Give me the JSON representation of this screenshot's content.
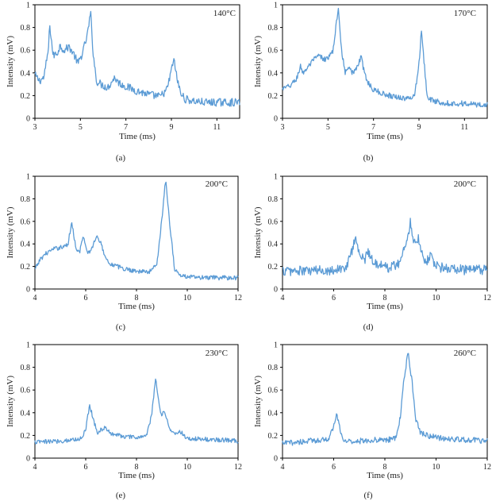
{
  "chart_data": [
    {
      "type": "line",
      "panel_label": "(a)",
      "annotation": "140°C",
      "xlabel": "Time (ms)",
      "ylabel": "Intensity (mV)",
      "xlim": [
        3,
        12
      ],
      "ylim": [
        0,
        1
      ],
      "xticks": [
        "3",
        "5",
        "7",
        "9",
        "11"
      ],
      "xtick_values": [
        3,
        5,
        7,
        9,
        11
      ],
      "yticks": [
        "0",
        "0.2",
        "0.4",
        "0.6",
        "0.8",
        "1"
      ],
      "ytick_values": [
        0,
        0.2,
        0.4,
        0.6,
        0.8,
        1
      ],
      "color": "#5b9bd5",
      "x": [
        3.0,
        3.2,
        3.4,
        3.6,
        3.65,
        3.8,
        4.0,
        4.1,
        4.3,
        4.5,
        4.7,
        4.9,
        5.1,
        5.3,
        5.45,
        5.55,
        5.7,
        5.9,
        6.2,
        6.5,
        6.7,
        7.0,
        7.5,
        8.0,
        8.5,
        8.8,
        9.0,
        9.1,
        9.2,
        9.4,
        9.6,
        10.0,
        10.5,
        11.0,
        11.5,
        12.0
      ],
      "y": [
        0.38,
        0.33,
        0.36,
        0.62,
        0.83,
        0.55,
        0.58,
        0.64,
        0.6,
        0.63,
        0.57,
        0.48,
        0.58,
        0.73,
        0.93,
        0.6,
        0.33,
        0.3,
        0.27,
        0.36,
        0.31,
        0.28,
        0.24,
        0.21,
        0.19,
        0.25,
        0.42,
        0.53,
        0.4,
        0.22,
        0.17,
        0.15,
        0.14,
        0.14,
        0.14,
        0.14
      ],
      "noise": 0.035
    },
    {
      "type": "line",
      "panel_label": "(b)",
      "annotation": "170°C",
      "xlabel": "Time (ms)",
      "ylabel": "Intensity (mV)",
      "xlim": [
        3,
        12
      ],
      "ylim": [
        0,
        1
      ],
      "xticks": [
        "3",
        "5",
        "7",
        "9",
        "11"
      ],
      "xtick_values": [
        3,
        5,
        7,
        9,
        11
      ],
      "yticks": [
        "0",
        "0.2",
        "0.4",
        "0.6",
        "0.8",
        "1"
      ],
      "ytick_values": [
        0,
        0.2,
        0.4,
        0.6,
        0.8,
        1
      ],
      "color": "#5b9bd5",
      "x": [
        3.0,
        3.3,
        3.6,
        3.8,
        3.9,
        4.2,
        4.4,
        4.6,
        4.8,
        5.0,
        5.2,
        5.35,
        5.45,
        5.6,
        5.75,
        5.9,
        6.1,
        6.3,
        6.45,
        6.6,
        6.8,
        7.0,
        7.5,
        8.0,
        8.5,
        8.8,
        9.0,
        9.1,
        9.2,
        9.35,
        9.5,
        10.0,
        10.5,
        11.0,
        11.5,
        12.0
      ],
      "y": [
        0.26,
        0.28,
        0.34,
        0.46,
        0.4,
        0.47,
        0.52,
        0.55,
        0.52,
        0.53,
        0.58,
        0.8,
        0.97,
        0.6,
        0.4,
        0.47,
        0.39,
        0.46,
        0.54,
        0.4,
        0.3,
        0.25,
        0.21,
        0.19,
        0.17,
        0.2,
        0.48,
        0.77,
        0.55,
        0.22,
        0.16,
        0.14,
        0.13,
        0.13,
        0.12,
        0.12
      ],
      "noise": 0.025
    },
    {
      "type": "line",
      "panel_label": "(c)",
      "annotation": "200°C",
      "xlabel": "Time (ms)",
      "ylabel": "Intensity (mV)",
      "xlim": [
        4,
        12
      ],
      "ylim": [
        0,
        1
      ],
      "xticks": [
        "4",
        "6",
        "8",
        "10",
        "12"
      ],
      "xtick_values": [
        4,
        6,
        8,
        10,
        12
      ],
      "yticks": [
        "0",
        "0.2",
        "0.4",
        "0.6",
        "0.8",
        "1"
      ],
      "ytick_values": [
        0,
        0.2,
        0.4,
        0.6,
        0.8,
        1
      ],
      "color": "#5b9bd5",
      "x": [
        4.0,
        4.2,
        4.4,
        4.7,
        5.0,
        5.3,
        5.45,
        5.6,
        5.75,
        5.9,
        6.05,
        6.2,
        6.45,
        6.6,
        6.8,
        7.0,
        7.5,
        8.0,
        8.5,
        8.8,
        9.0,
        9.15,
        9.3,
        9.5,
        9.7,
        10.0,
        10.5,
        11.0,
        11.5,
        12.0
      ],
      "y": [
        0.17,
        0.26,
        0.31,
        0.35,
        0.37,
        0.39,
        0.6,
        0.38,
        0.32,
        0.47,
        0.32,
        0.34,
        0.48,
        0.4,
        0.27,
        0.22,
        0.18,
        0.16,
        0.15,
        0.22,
        0.62,
        0.98,
        0.6,
        0.18,
        0.12,
        0.11,
        0.1,
        0.1,
        0.1,
        0.1
      ],
      "noise": 0.02
    },
    {
      "type": "line",
      "panel_label": "(d)",
      "annotation": "200°C",
      "xlabel": "Time (ms)",
      "ylabel": "Intensity (mV)",
      "xlim": [
        4,
        12
      ],
      "ylim": [
        0,
        1
      ],
      "xticks": [
        "4",
        "6",
        "8",
        "10",
        "12"
      ],
      "xtick_values": [
        4,
        6,
        8,
        10,
        12
      ],
      "yticks": [
        "0",
        "0.2",
        "0.4",
        "0.6",
        "0.8",
        "1"
      ],
      "ytick_values": [
        0,
        0.2,
        0.4,
        0.6,
        0.8,
        1
      ],
      "color": "#5b9bd5",
      "x": [
        4.0,
        5.0,
        6.0,
        6.5,
        6.7,
        6.85,
        7.0,
        7.2,
        7.35,
        7.5,
        7.8,
        8.2,
        8.6,
        8.85,
        9.0,
        9.15,
        9.3,
        9.45,
        9.6,
        9.8,
        10.0,
        10.5,
        11.0,
        11.5,
        12.0
      ],
      "y": [
        0.16,
        0.16,
        0.17,
        0.19,
        0.33,
        0.47,
        0.3,
        0.26,
        0.33,
        0.26,
        0.21,
        0.19,
        0.24,
        0.42,
        0.6,
        0.4,
        0.46,
        0.32,
        0.24,
        0.3,
        0.2,
        0.18,
        0.17,
        0.17,
        0.17
      ],
      "noise": 0.045
    },
    {
      "type": "line",
      "panel_label": "(e)",
      "annotation": "230°C",
      "xlabel": "Time (ms)",
      "ylabel": "Intensity (mV)",
      "xlim": [
        4,
        12
      ],
      "ylim": [
        0,
        1
      ],
      "xticks": [
        "4",
        "6",
        "8",
        "10",
        "12"
      ],
      "xtick_values": [
        4,
        6,
        8,
        10,
        12
      ],
      "yticks": [
        "0",
        "0.2",
        "0.4",
        "0.6",
        "0.8",
        "1"
      ],
      "ytick_values": [
        0,
        0.2,
        0.4,
        0.6,
        0.8,
        1
      ],
      "color": "#5b9bd5",
      "x": [
        4.0,
        5.0,
        5.8,
        6.0,
        6.15,
        6.3,
        6.45,
        6.7,
        7.0,
        7.5,
        8.0,
        8.4,
        8.6,
        8.75,
        8.85,
        8.95,
        9.1,
        9.3,
        9.5,
        9.7,
        10.0,
        10.5,
        11.0,
        11.5,
        12.0
      ],
      "y": [
        0.14,
        0.15,
        0.17,
        0.25,
        0.47,
        0.35,
        0.22,
        0.27,
        0.22,
        0.19,
        0.18,
        0.2,
        0.38,
        0.7,
        0.55,
        0.38,
        0.42,
        0.26,
        0.21,
        0.24,
        0.17,
        0.17,
        0.16,
        0.16,
        0.15
      ],
      "noise": 0.02
    },
    {
      "type": "line",
      "panel_label": "(f)",
      "annotation": "260°C",
      "xlabel": "Time (ms)",
      "ylabel": "Intensity (mV)",
      "xlim": [
        4,
        12
      ],
      "ylim": [
        0,
        1
      ],
      "xticks": [
        "4",
        "6",
        "8",
        "10",
        "12"
      ],
      "xtick_values": [
        4,
        6,
        8,
        10,
        12
      ],
      "yticks": [
        "0",
        "0.2",
        "0.4",
        "0.6",
        "0.8",
        "1"
      ],
      "ytick_values": [
        0,
        0.2,
        0.4,
        0.6,
        0.8,
        1
      ],
      "color": "#5b9bd5",
      "x": [
        4.0,
        5.0,
        5.8,
        6.0,
        6.1,
        6.25,
        6.4,
        7.0,
        7.5,
        8.0,
        8.4,
        8.6,
        8.75,
        8.9,
        9.05,
        9.2,
        9.4,
        9.7,
        10.0,
        10.5,
        11.0,
        11.5,
        12.0
      ],
      "y": [
        0.13,
        0.15,
        0.17,
        0.27,
        0.39,
        0.25,
        0.15,
        0.15,
        0.16,
        0.16,
        0.17,
        0.35,
        0.7,
        0.93,
        0.7,
        0.35,
        0.22,
        0.2,
        0.18,
        0.17,
        0.16,
        0.16,
        0.15
      ],
      "noise": 0.025
    }
  ]
}
